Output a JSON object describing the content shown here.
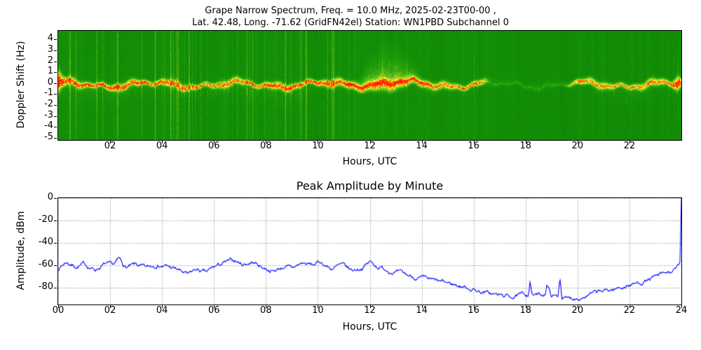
{
  "figure": {
    "title_line1": "Grape Narrow Spectrum, Freq. = 10.0 MHz, 2025-02-23T00-00 ,",
    "title_line2": "Lat.  42.48, Long. -71.62 (GridFN42el) Station: WN1PBD Subchannel 0"
  },
  "chart_data": [
    {
      "type": "heatmap",
      "name": "doppler-spectrogram",
      "xlabel": "Hours, UTC",
      "ylabel": "Doppler Shift (Hz)",
      "xlim": [
        0,
        24
      ],
      "ylim": [
        -5.2,
        4.8
      ],
      "xticks": [
        2,
        4,
        6,
        8,
        10,
        12,
        14,
        16,
        18,
        20,
        22
      ],
      "xtick_labels": [
        "02",
        "04",
        "06",
        "08",
        "10",
        "12",
        "14",
        "16",
        "18",
        "20",
        "22"
      ],
      "yticks": [
        4,
        3,
        2,
        1,
        0,
        -1,
        -2,
        -3,
        -4,
        -5
      ],
      "ytick_labels": [
        "4",
        "3",
        "2",
        "1",
        "0",
        "-1",
        "-2",
        "-3",
        "-4",
        "-5"
      ],
      "colormap_stops": [
        [
          0,
          "#006e00"
        ],
        [
          0.42,
          "#1e9e0a"
        ],
        [
          0.62,
          "#76c61e"
        ],
        [
          0.8,
          "#deea42"
        ],
        [
          0.9,
          "#ffff00"
        ],
        [
          1,
          "#ff2000"
        ]
      ],
      "features": {
        "carrier_band": {
          "center_hz": -0.1,
          "width_hz": 0.5,
          "description": "bright yellow band near 0 Hz with red specks before 10 UTC"
        },
        "plume": {
          "start_h": 11.3,
          "peak_h": 12.75,
          "end_h": 14.6,
          "max_hz": 4.6
        },
        "quiet_interval": {
          "start_h": 16.2,
          "end_h": 19.7
        },
        "evening_spread": {
          "start_h": 19.8,
          "peak_h": 22.2,
          "down_to_hz": -2.5
        },
        "strong_streaks_h": [
          0.45,
          2.3,
          4.62,
          5.05,
          9.55,
          10.6
        ]
      }
    },
    {
      "type": "line",
      "name": "peak-amplitude",
      "title": "Peak Amplitude by Minute",
      "xlabel": "Hours, UTC",
      "ylabel": "Amplitude, dBm",
      "xlim": [
        0,
        24
      ],
      "ylim": [
        -95,
        0
      ],
      "xticks": [
        0,
        2,
        4,
        6,
        8,
        10,
        12,
        14,
        16,
        18,
        20,
        22,
        24
      ],
      "xtick_labels": [
        "00",
        "02",
        "04",
        "06",
        "08",
        "10",
        "12",
        "14",
        "16",
        "18",
        "20",
        "22",
        "24"
      ],
      "yticks": [
        0,
        -20,
        -40,
        -60,
        -80
      ],
      "ytick_labels": [
        "0",
        "-20",
        "-40",
        "-60",
        "-80"
      ],
      "line_color": "#0000ff",
      "grid_color": "#777777",
      "grid_style": "dotted",
      "x": [
        0,
        0.3,
        0.7,
        1.0,
        1.4,
        1.8,
        2.1,
        2.35,
        2.6,
        3.0,
        3.4,
        3.8,
        4.2,
        4.6,
        5.0,
        5.3,
        5.7,
        6.0,
        6.4,
        6.8,
        7.1,
        7.5,
        7.9,
        8.3,
        8.7,
        9.0,
        9.4,
        9.8,
        10.1,
        10.5,
        10.9,
        11.3,
        11.7,
        12.0,
        12.3,
        12.7,
        13.0,
        13.4,
        13.8,
        14.2,
        14.6,
        15.0,
        15.4,
        15.8,
        16.2,
        16.6,
        17.0,
        17.4,
        17.8,
        18.1,
        18.17,
        18.25,
        18.6,
        18.75,
        18.82,
        19.0,
        19.25,
        19.32,
        19.4,
        19.6,
        19.9,
        20.3,
        20.7,
        21.1,
        21.5,
        21.9,
        22.3,
        22.7,
        23.1,
        23.5,
        23.8,
        23.95,
        24
      ],
      "y": [
        -63,
        -57,
        -61,
        -59,
        -64,
        -59,
        -61,
        -55,
        -62,
        -60,
        -63,
        -59,
        -61,
        -64,
        -69,
        -64,
        -67,
        -62,
        -58,
        -56,
        -59,
        -57,
        -62,
        -65,
        -61,
        -63,
        -58,
        -60,
        -57,
        -63,
        -60,
        -65,
        -62,
        -57,
        -61,
        -64,
        -66,
        -69,
        -71,
        -73,
        -75,
        -76,
        -78,
        -80,
        -83,
        -85,
        -87,
        -88,
        -87,
        -86,
        -74,
        -86,
        -87,
        -85,
        -77,
        -87,
        -88,
        -70,
        -88,
        -90,
        -89,
        -87,
        -85,
        -83,
        -81,
        -78,
        -76,
        -73,
        -70,
        -67,
        -64,
        -58,
        -2
      ]
    }
  ]
}
